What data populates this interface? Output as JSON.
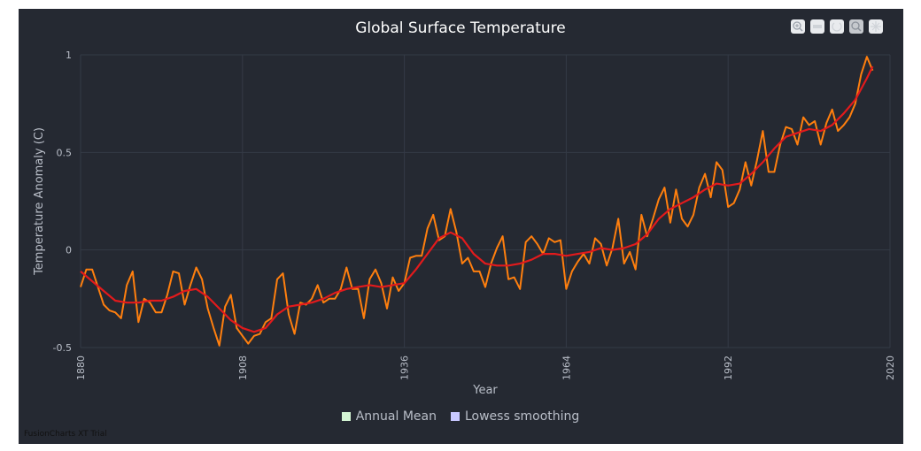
{
  "chart_data": {
    "type": "line",
    "title": "Global Surface Temperature",
    "xlabel": "Year",
    "ylabel": "Temperature Anomaly (C)",
    "xlim": [
      1880,
      2020
    ],
    "ylim": [
      -0.5,
      1
    ],
    "x_ticks": [
      "1880",
      "1908",
      "1936",
      "1964",
      "1992",
      "2020"
    ],
    "y_ticks": [
      "-0.5",
      "0",
      "0.5",
      "1"
    ],
    "grid": true,
    "legend_position": "bottom",
    "series": [
      {
        "name": "Annual Mean",
        "color": "#ff7f0e",
        "legend_color": "#d4f5d4",
        "x": [
          1880,
          1881,
          1882,
          1883,
          1884,
          1885,
          1886,
          1887,
          1888,
          1889,
          1890,
          1891,
          1892,
          1893,
          1894,
          1895,
          1896,
          1897,
          1898,
          1899,
          1900,
          1901,
          1902,
          1903,
          1904,
          1905,
          1906,
          1907,
          1908,
          1909,
          1910,
          1911,
          1912,
          1913,
          1914,
          1915,
          1916,
          1917,
          1918,
          1919,
          1920,
          1921,
          1922,
          1923,
          1924,
          1925,
          1926,
          1927,
          1928,
          1929,
          1930,
          1931,
          1932,
          1933,
          1934,
          1935,
          1936,
          1937,
          1938,
          1939,
          1940,
          1941,
          1942,
          1943,
          1944,
          1945,
          1946,
          1947,
          1948,
          1949,
          1950,
          1951,
          1952,
          1953,
          1954,
          1955,
          1956,
          1957,
          1958,
          1959,
          1960,
          1961,
          1962,
          1963,
          1964,
          1965,
          1966,
          1967,
          1968,
          1969,
          1970,
          1971,
          1972,
          1973,
          1974,
          1975,
          1976,
          1977,
          1978,
          1979,
          1980,
          1981,
          1982,
          1983,
          1984,
          1985,
          1986,
          1987,
          1988,
          1989,
          1990,
          1991,
          1992,
          1993,
          1994,
          1995,
          1996,
          1997,
          1998,
          1999,
          2000,
          2001,
          2002,
          2003,
          2004,
          2005,
          2006,
          2007,
          2008,
          2009,
          2010,
          2011,
          2012,
          2013,
          2014,
          2015,
          2016,
          2017
        ],
        "values": [
          -0.19,
          -0.1,
          -0.1,
          -0.19,
          -0.28,
          -0.31,
          -0.32,
          -0.35,
          -0.18,
          -0.11,
          -0.37,
          -0.25,
          -0.27,
          -0.32,
          -0.32,
          -0.23,
          -0.11,
          -0.12,
          -0.28,
          -0.18,
          -0.09,
          -0.15,
          -0.3,
          -0.4,
          -0.49,
          -0.29,
          -0.23,
          -0.4,
          -0.44,
          -0.48,
          -0.44,
          -0.43,
          -0.37,
          -0.35,
          -0.15,
          -0.12,
          -0.33,
          -0.43,
          -0.27,
          -0.28,
          -0.25,
          -0.18,
          -0.27,
          -0.25,
          -0.25,
          -0.2,
          -0.09,
          -0.2,
          -0.2,
          -0.35,
          -0.15,
          -0.1,
          -0.17,
          -0.3,
          -0.14,
          -0.21,
          -0.17,
          -0.04,
          -0.03,
          -0.03,
          0.11,
          0.18,
          0.05,
          0.07,
          0.21,
          0.09,
          -0.07,
          -0.04,
          -0.11,
          -0.11,
          -0.19,
          -0.07,
          0.01,
          0.07,
          -0.15,
          -0.14,
          -0.2,
          0.04,
          0.07,
          0.03,
          -0.02,
          0.06,
          0.04,
          0.05,
          -0.2,
          -0.11,
          -0.06,
          -0.02,
          -0.07,
          0.06,
          0.03,
          -0.08,
          0.01,
          0.16,
          -0.07,
          -0.01,
          -0.1,
          0.18,
          0.07,
          0.16,
          0.26,
          0.32,
          0.14,
          0.31,
          0.16,
          0.12,
          0.18,
          0.32,
          0.39,
          0.27,
          0.45,
          0.41,
          0.22,
          0.24,
          0.31,
          0.45,
          0.33,
          0.46,
          0.61,
          0.4,
          0.4,
          0.54,
          0.63,
          0.62,
          0.54,
          0.68,
          0.64,
          0.66,
          0.54,
          0.65,
          0.72,
          0.61,
          0.64,
          0.68,
          0.75,
          0.9,
          0.99,
          0.92
        ]
      },
      {
        "name": "Lowess smoothing",
        "color": "#e31a1c",
        "legend_color": "#c8c8ff",
        "x": [
          1880,
          1882,
          1884,
          1886,
          1888,
          1890,
          1892,
          1894,
          1896,
          1898,
          1900,
          1902,
          1904,
          1906,
          1908,
          1910,
          1912,
          1914,
          1916,
          1918,
          1920,
          1922,
          1924,
          1926,
          1928,
          1930,
          1932,
          1934,
          1936,
          1938,
          1940,
          1942,
          1944,
          1946,
          1948,
          1950,
          1952,
          1954,
          1956,
          1958,
          1960,
          1962,
          1964,
          1966,
          1968,
          1970,
          1972,
          1974,
          1976,
          1978,
          1980,
          1982,
          1984,
          1986,
          1988,
          1990,
          1992,
          1994,
          1996,
          1998,
          2000,
          2002,
          2004,
          2006,
          2008,
          2010,
          2012,
          2014,
          2016,
          2017
        ],
        "values": [
          -0.11,
          -0.16,
          -0.21,
          -0.26,
          -0.27,
          -0.27,
          -0.26,
          -0.26,
          -0.24,
          -0.21,
          -0.2,
          -0.24,
          -0.3,
          -0.36,
          -0.4,
          -0.42,
          -0.4,
          -0.33,
          -0.29,
          -0.28,
          -0.27,
          -0.25,
          -0.22,
          -0.2,
          -0.19,
          -0.18,
          -0.19,
          -0.18,
          -0.17,
          -0.1,
          -0.02,
          0.06,
          0.09,
          0.06,
          -0.02,
          -0.07,
          -0.08,
          -0.08,
          -0.07,
          -0.05,
          -0.02,
          -0.02,
          -0.03,
          -0.02,
          -0.01,
          0.01,
          0.0,
          0.01,
          0.03,
          0.08,
          0.16,
          0.21,
          0.24,
          0.27,
          0.31,
          0.34,
          0.33,
          0.34,
          0.39,
          0.45,
          0.52,
          0.58,
          0.6,
          0.62,
          0.61,
          0.64,
          0.7,
          0.77,
          0.88,
          0.94
        ]
      }
    ]
  },
  "watermark": "FusionCharts XT Trial",
  "toolbar": [
    {
      "name": "zoom-in-icon"
    },
    {
      "name": "zoom-out-icon"
    },
    {
      "name": "reset-icon"
    },
    {
      "name": "zoom-selection-icon"
    },
    {
      "name": "pan-icon"
    }
  ]
}
